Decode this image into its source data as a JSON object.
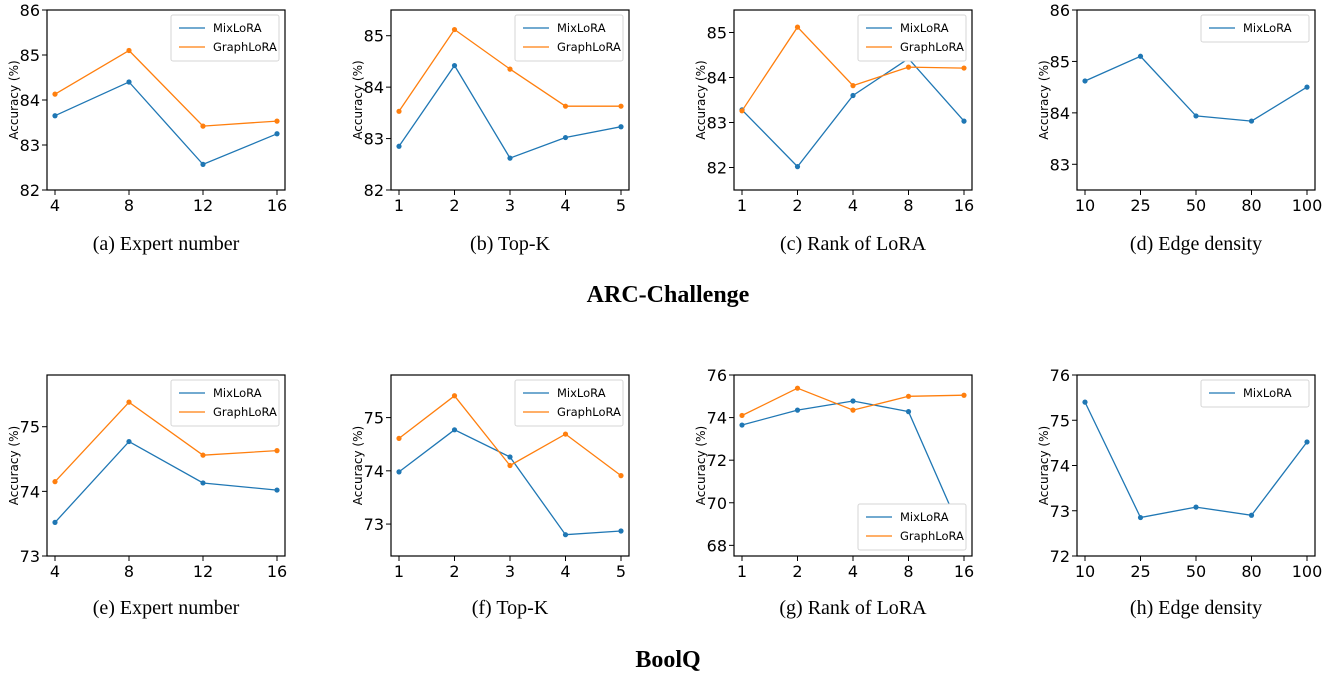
{
  "groups": [
    {
      "title": "ARC-Challenge"
    },
    {
      "title": "BoolQ"
    }
  ],
  "colors": {
    "MixLoRA": "#1f77b4",
    "GraphLoRA": "#ff7f0e"
  },
  "chart_data": [
    {
      "type": "line",
      "caption": "(a) Expert number",
      "ylabel": "Accuracy (%)",
      "categories": [
        "4",
        "8",
        "12",
        "16"
      ],
      "ylim": [
        82,
        86
      ],
      "yticks": [
        82,
        83,
        84,
        85,
        86
      ],
      "legend": "top-right",
      "series": [
        {
          "name": "MixLoRA",
          "values": [
            83.65,
            84.4,
            82.57,
            83.25
          ]
        },
        {
          "name": "GraphLoRA",
          "values": [
            84.13,
            85.1,
            83.42,
            83.53
          ]
        }
      ]
    },
    {
      "type": "line",
      "caption": "(b) Top-K",
      "ylabel": "Accuracy (%)",
      "categories": [
        "1",
        "2",
        "3",
        "4",
        "5"
      ],
      "ylim": [
        82,
        85.5
      ],
      "yticks": [
        82,
        83,
        84,
        85
      ],
      "legend": "top-right",
      "series": [
        {
          "name": "MixLoRA",
          "values": [
            82.85,
            84.42,
            82.62,
            83.02,
            83.23
          ]
        },
        {
          "name": "GraphLoRA",
          "values": [
            83.53,
            85.12,
            84.35,
            83.63,
            83.63
          ]
        }
      ]
    },
    {
      "type": "line",
      "caption": "(c) Rank of LoRA",
      "ylabel": "Accuracy (%)",
      "categories": [
        "1",
        "2",
        "4",
        "8",
        "16"
      ],
      "ylim": [
        81.5,
        85.5
      ],
      "yticks": [
        82,
        83,
        84,
        85
      ],
      "legend": "top-right",
      "series": [
        {
          "name": "MixLoRA",
          "values": [
            83.28,
            82.02,
            83.6,
            84.42,
            83.03
          ]
        },
        {
          "name": "GraphLoRA",
          "values": [
            83.26,
            85.12,
            83.82,
            84.23,
            84.21
          ]
        }
      ]
    },
    {
      "type": "line",
      "caption": "(d) Edge density",
      "ylabel": "Accuracy (%)",
      "categories": [
        "10",
        "25",
        "50",
        "80",
        "100"
      ],
      "ylim": [
        82.5,
        86
      ],
      "yticks": [
        83,
        84,
        85,
        86
      ],
      "legend": "top-right",
      "series": [
        {
          "name": "MixLoRA",
          "values": [
            84.62,
            85.1,
            83.94,
            83.84,
            84.5
          ]
        }
      ]
    },
    {
      "type": "line",
      "caption": "(e) Expert number",
      "ylabel": "Accuracy (%)",
      "categories": [
        "4",
        "8",
        "12",
        "16"
      ],
      "ylim": [
        73,
        75.8
      ],
      "yticks": [
        73,
        74,
        75
      ],
      "legend": "top-right",
      "series": [
        {
          "name": "MixLoRA",
          "values": [
            73.52,
            74.77,
            74.13,
            74.02
          ]
        },
        {
          "name": "GraphLoRA",
          "values": [
            74.15,
            75.38,
            74.56,
            74.63
          ]
        }
      ]
    },
    {
      "type": "line",
      "caption": "(f) Top-K",
      "ylabel": "Accuracy (%)",
      "categories": [
        "1",
        "2",
        "3",
        "4",
        "5"
      ],
      "ylim": [
        72.4,
        75.8
      ],
      "yticks": [
        73,
        74,
        75
      ],
      "legend": "top-right",
      "series": [
        {
          "name": "MixLoRA",
          "values": [
            73.98,
            74.77,
            74.26,
            72.8,
            72.87
          ]
        },
        {
          "name": "GraphLoRA",
          "values": [
            74.61,
            75.41,
            74.1,
            74.69,
            73.91
          ]
        }
      ]
    },
    {
      "type": "line",
      "caption": "(g) Rank of LoRA",
      "ylabel": "Accuracy (%)",
      "categories": [
        "1",
        "2",
        "4",
        "8",
        "16"
      ],
      "ylim": [
        67.5,
        76
      ],
      "yticks": [
        68,
        70,
        72,
        74,
        76
      ],
      "legend": "bottom-right",
      "series": [
        {
          "name": "MixLoRA",
          "values": [
            73.65,
            74.35,
            74.78,
            74.28,
            68.35
          ]
        },
        {
          "name": "GraphLoRA",
          "values": [
            74.1,
            75.38,
            74.35,
            75.0,
            75.05
          ]
        }
      ]
    },
    {
      "type": "line",
      "caption": "(h) Edge density",
      "ylabel": "Accuracy (%)",
      "categories": [
        "10",
        "25",
        "50",
        "80",
        "100"
      ],
      "ylim": [
        72,
        76
      ],
      "yticks": [
        72,
        73,
        74,
        75,
        76
      ],
      "legend": "top-right",
      "series": [
        {
          "name": "MixLoRA",
          "values": [
            75.4,
            72.85,
            73.08,
            72.9,
            74.52
          ]
        }
      ]
    }
  ]
}
